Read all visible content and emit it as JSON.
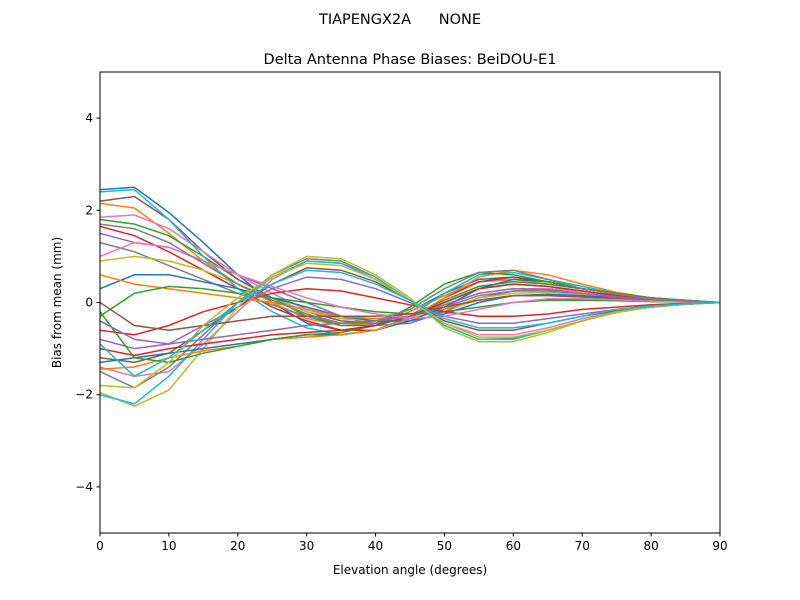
{
  "chart_data": {
    "type": "line",
    "suptitle": "TIAPENGX2A      NONE",
    "title": "Delta Antenna Phase Biases: BeiDOU-E1",
    "xlabel": "Elevation angle (degrees)",
    "ylabel": "Bias from mean (mm)",
    "xlim": [
      0,
      90
    ],
    "ylim": [
      -5,
      5
    ],
    "xticks": [
      0,
      10,
      20,
      30,
      40,
      50,
      60,
      70,
      80,
      90
    ],
    "yticks": [
      -4,
      -2,
      0,
      2,
      4
    ],
    "ytick_labels": [
      "−4",
      "−2",
      "0",
      "2",
      "4"
    ],
    "grid": false,
    "x": [
      0,
      5,
      10,
      15,
      20,
      25,
      30,
      35,
      40,
      45,
      50,
      55,
      60,
      65,
      70,
      75,
      80,
      85,
      90
    ],
    "colors": [
      "#1f77b4",
      "#ff7f0e",
      "#2ca02c",
      "#d62728",
      "#9467bd",
      "#8c564b",
      "#e377c2",
      "#7f7f7f",
      "#bcbd22",
      "#17becf"
    ],
    "series": [
      {
        "values": [
          2.45,
          2.5,
          1.95,
          1.3,
          0.6,
          0.0,
          -0.45,
          -0.6,
          -0.5,
          -0.2,
          0.2,
          0.5,
          0.55,
          0.45,
          0.3,
          0.2,
          0.1,
          0.05,
          0
        ]
      },
      {
        "values": [
          2.15,
          2.05,
          1.5,
          0.9,
          0.4,
          0.0,
          -0.35,
          -0.5,
          -0.45,
          -0.2,
          0.15,
          0.45,
          0.5,
          0.4,
          0.3,
          0.2,
          0.1,
          0.04,
          0
        ]
      },
      {
        "values": [
          1.8,
          1.7,
          1.45,
          1.0,
          0.5,
          0.1,
          -0.3,
          -0.5,
          -0.5,
          -0.3,
          0.05,
          0.35,
          0.45,
          0.4,
          0.3,
          0.2,
          0.1,
          0.05,
          0
        ]
      },
      {
        "values": [
          1.65,
          1.45,
          1.1,
          0.7,
          0.3,
          -0.1,
          -0.4,
          -0.6,
          -0.6,
          -0.35,
          0.1,
          0.45,
          0.55,
          0.45,
          0.3,
          0.2,
          0.1,
          0.04,
          0
        ]
      },
      {
        "values": [
          1.5,
          1.3,
          1.2,
          0.9,
          0.6,
          0.3,
          0.0,
          -0.3,
          -0.5,
          -0.45,
          -0.2,
          0.1,
          0.25,
          0.3,
          0.25,
          0.15,
          0.08,
          0.03,
          0
        ]
      },
      {
        "values": [
          2.2,
          2.3,
          1.8,
          1.1,
          0.5,
          0.1,
          -0.2,
          -0.4,
          -0.45,
          -0.3,
          0.0,
          0.3,
          0.4,
          0.35,
          0.25,
          0.15,
          0.08,
          0.03,
          0
        ]
      },
      {
        "values": [
          1.85,
          1.9,
          1.6,
          1.1,
          0.6,
          0.2,
          -0.15,
          -0.35,
          -0.4,
          -0.3,
          -0.05,
          0.2,
          0.3,
          0.3,
          0.25,
          0.15,
          0.08,
          0.03,
          0
        ]
      },
      {
        "values": [
          1.3,
          1.1,
          0.8,
          0.5,
          0.2,
          -0.05,
          -0.3,
          -0.45,
          -0.45,
          -0.3,
          -0.05,
          0.2,
          0.3,
          0.28,
          0.2,
          0.12,
          0.06,
          0.02,
          0
        ]
      },
      {
        "values": [
          0.9,
          1.0,
          0.9,
          0.7,
          0.4,
          0.1,
          -0.2,
          -0.35,
          -0.4,
          -0.35,
          -0.15,
          0.1,
          0.2,
          0.22,
          0.18,
          0.12,
          0.06,
          0.02,
          0
        ]
      },
      {
        "values": [
          2.4,
          2.45,
          1.8,
          1.0,
          0.3,
          -0.2,
          -0.55,
          -0.7,
          -0.6,
          -0.3,
          0.2,
          0.6,
          0.65,
          0.5,
          0.35,
          0.2,
          0.1,
          0.05,
          0
        ]
      },
      {
        "values": [
          0.3,
          0.6,
          0.6,
          0.45,
          0.3,
          0.1,
          -0.1,
          -0.3,
          -0.4,
          -0.4,
          -0.25,
          0.0,
          0.15,
          0.18,
          0.15,
          0.1,
          0.05,
          0.02,
          0
        ]
      },
      {
        "values": [
          0.6,
          0.4,
          0.3,
          0.2,
          0.1,
          0.0,
          -0.15,
          -0.3,
          -0.35,
          -0.3,
          -0.15,
          0.05,
          0.15,
          0.15,
          0.12,
          0.08,
          0.04,
          0.02,
          0
        ]
      },
      {
        "values": [
          -0.3,
          0.2,
          0.35,
          0.3,
          0.2,
          0.1,
          0.0,
          -0.1,
          -0.2,
          -0.25,
          -0.2,
          -0.1,
          0.0,
          0.05,
          0.05,
          0.04,
          0.02,
          0.01,
          0
        ]
      },
      {
        "values": [
          -0.6,
          -0.7,
          -0.5,
          -0.2,
          0.0,
          0.2,
          0.3,
          0.25,
          0.1,
          -0.05,
          -0.2,
          -0.3,
          -0.3,
          -0.25,
          -0.15,
          -0.1,
          -0.05,
          -0.02,
          0
        ]
      },
      {
        "values": [
          -0.8,
          -1.0,
          -0.9,
          -0.5,
          -0.1,
          0.3,
          0.55,
          0.5,
          0.3,
          0.0,
          -0.3,
          -0.45,
          -0.45,
          -0.35,
          -0.25,
          -0.15,
          -0.07,
          -0.03,
          0
        ]
      },
      {
        "values": [
          -1.2,
          -1.3,
          -1.1,
          -0.6,
          -0.1,
          0.4,
          0.75,
          0.7,
          0.45,
          0.05,
          -0.4,
          -0.6,
          -0.6,
          -0.45,
          -0.3,
          -0.18,
          -0.08,
          -0.03,
          0
        ]
      },
      {
        "values": [
          -1.4,
          -1.6,
          -1.5,
          -0.9,
          -0.2,
          0.5,
          0.9,
          0.85,
          0.5,
          0.05,
          -0.45,
          -0.7,
          -0.7,
          -0.55,
          -0.35,
          -0.2,
          -0.1,
          -0.04,
          0
        ]
      },
      {
        "values": [
          -1.5,
          -1.85,
          -1.4,
          -0.7,
          0.0,
          0.6,
          0.95,
          0.9,
          0.55,
          0.05,
          -0.5,
          -0.8,
          -0.78,
          -0.6,
          -0.4,
          -0.2,
          -0.1,
          -0.04,
          0
        ]
      },
      {
        "values": [
          -1.95,
          -2.25,
          -1.9,
          -1.0,
          -0.1,
          0.6,
          1.0,
          0.95,
          0.6,
          0.1,
          -0.55,
          -0.85,
          -0.85,
          -0.65,
          -0.4,
          -0.22,
          -0.1,
          -0.04,
          0
        ]
      },
      {
        "values": [
          -2.0,
          -2.2,
          -1.6,
          -0.8,
          0.0,
          0.55,
          0.9,
          0.85,
          0.55,
          0.05,
          -0.5,
          -0.8,
          -0.8,
          -0.6,
          -0.4,
          -0.2,
          -0.1,
          -0.04,
          0
        ]
      },
      {
        "values": [
          -1.3,
          -1.2,
          -1.1,
          -1.0,
          -0.9,
          -0.8,
          -0.7,
          -0.7,
          -0.6,
          -0.4,
          -0.1,
          0.3,
          0.5,
          0.45,
          0.3,
          0.2,
          0.1,
          0.04,
          0
        ]
      },
      {
        "values": [
          -1.45,
          -1.4,
          -1.2,
          -1.05,
          -0.95,
          -0.8,
          -0.75,
          -0.7,
          -0.6,
          -0.35,
          0.1,
          0.55,
          0.7,
          0.6,
          0.4,
          0.22,
          0.1,
          0.04,
          0
        ]
      },
      {
        "values": [
          -0.2,
          -1.2,
          -1.3,
          -1.1,
          -0.95,
          -0.8,
          -0.7,
          -0.65,
          -0.5,
          -0.1,
          0.4,
          0.65,
          0.6,
          0.45,
          0.3,
          0.2,
          0.1,
          0.04,
          0
        ]
      },
      {
        "values": [
          -1.0,
          -1.15,
          -1.0,
          -0.9,
          -0.8,
          -0.7,
          -0.65,
          -0.6,
          -0.5,
          -0.3,
          0.0,
          0.3,
          0.4,
          0.35,
          0.25,
          0.15,
          0.08,
          0.03,
          0
        ]
      },
      {
        "values": [
          -0.4,
          -0.8,
          -0.9,
          -0.8,
          -0.7,
          -0.6,
          -0.5,
          -0.45,
          -0.4,
          -0.3,
          -0.1,
          0.15,
          0.25,
          0.25,
          0.2,
          0.12,
          0.06,
          0.02,
          0
        ]
      },
      {
        "values": [
          0.0,
          -0.5,
          -0.6,
          -0.5,
          -0.4,
          -0.3,
          -0.3,
          -0.3,
          -0.3,
          -0.25,
          -0.1,
          0.05,
          0.15,
          0.15,
          0.12,
          0.08,
          0.04,
          0.02,
          0
        ]
      },
      {
        "values": [
          1.0,
          1.3,
          1.2,
          0.9,
          0.6,
          0.35,
          0.1,
          -0.1,
          -0.25,
          -0.35,
          -0.3,
          -0.15,
          0.0,
          0.08,
          0.08,
          0.06,
          0.03,
          0.01,
          0
        ]
      },
      {
        "values": [
          1.7,
          1.6,
          1.3,
          0.85,
          0.4,
          0.05,
          -0.25,
          -0.45,
          -0.4,
          -0.15,
          0.3,
          0.65,
          0.7,
          0.5,
          0.3,
          0.18,
          0.08,
          0.03,
          0
        ]
      },
      {
        "values": [
          -1.8,
          -1.85,
          -1.3,
          -0.5,
          0.1,
          0.55,
          0.85,
          0.8,
          0.5,
          0.05,
          -0.45,
          -0.75,
          -0.75,
          -0.6,
          -0.4,
          -0.2,
          -0.1,
          -0.04,
          0
        ]
      },
      {
        "values": [
          -0.9,
          -1.6,
          -1.2,
          -0.6,
          0.0,
          0.4,
          0.7,
          0.65,
          0.4,
          0.05,
          -0.35,
          -0.55,
          -0.55,
          -0.45,
          -0.3,
          -0.15,
          -0.08,
          -0.03,
          0
        ]
      }
    ]
  }
}
